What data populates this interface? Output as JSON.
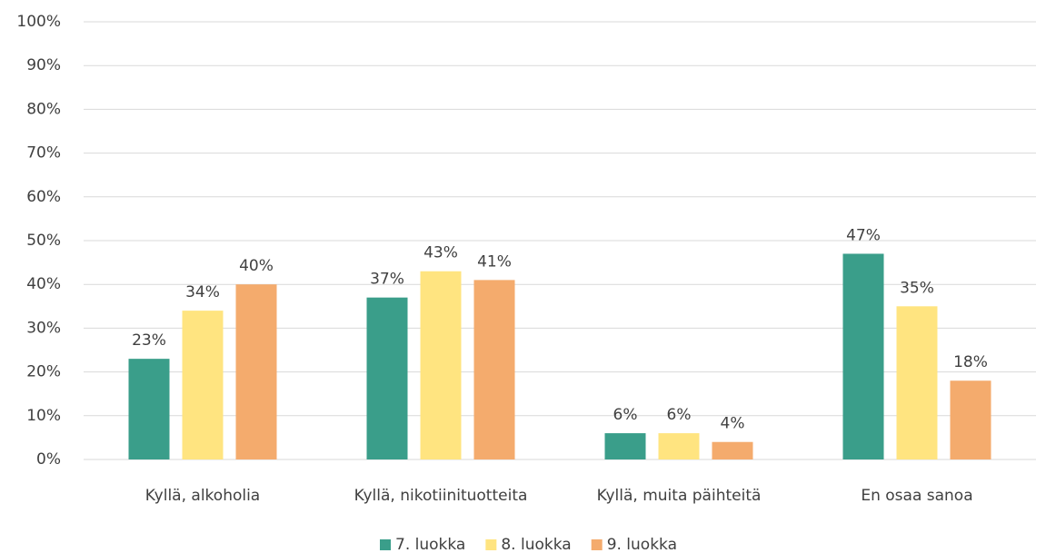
{
  "chart_data": {
    "type": "bar",
    "categories": [
      "Kyllä, alkoholia",
      "Kyllä, nikotiinituotteita",
      "Kyllä, muita päihteitä",
      "En osaa sanoa"
    ],
    "series": [
      {
        "name": "7. luokka",
        "color": "#3a9e8a",
        "values": [
          23,
          37,
          6,
          47
        ],
        "value_labels": [
          "23%",
          "37%",
          "6%",
          "47%"
        ]
      },
      {
        "name": "8. luokka",
        "color": "#ffe480",
        "values": [
          34,
          43,
          6,
          35
        ],
        "value_labels": [
          "34%",
          "43%",
          "6%",
          "35%"
        ]
      },
      {
        "name": "9. luokka",
        "color": "#f4ab6d",
        "values": [
          40,
          41,
          4,
          18
        ],
        "value_labels": [
          "40%",
          "41%",
          "4%",
          "18%"
        ]
      }
    ],
    "ylim": [
      0,
      100
    ],
    "yticks": [
      {
        "value": 0,
        "label": "0%"
      },
      {
        "value": 10,
        "label": "10%"
      },
      {
        "value": 20,
        "label": "20%"
      },
      {
        "value": 30,
        "label": "30%"
      },
      {
        "value": 40,
        "label": "40%"
      },
      {
        "value": 50,
        "label": "50%"
      },
      {
        "value": 60,
        "label": "60%"
      },
      {
        "value": 70,
        "label": "70%"
      },
      {
        "value": 80,
        "label": "80%"
      },
      {
        "value": 90,
        "label": "90%"
      },
      {
        "value": 100,
        "label": "100%"
      }
    ],
    "grid": true,
    "legend": "bottom"
  }
}
